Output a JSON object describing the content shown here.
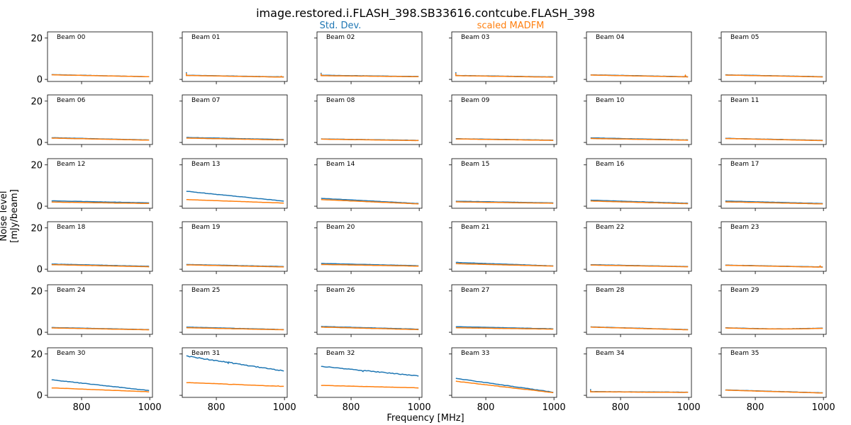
{
  "title": "image.restored.i.FLASH_398.SB33616.contcube.FLASH_398",
  "legend": [
    {
      "label": "Std. Dev.",
      "color": "#1f77b4"
    },
    {
      "label": "scaled MADFM",
      "color": "#ff7f0e"
    }
  ],
  "xlabel": "Frequency [MHz]",
  "ylabel": "Noise level [mJy/beam]",
  "chart_data": {
    "type": "line",
    "layout": "6x6 small multiples, shared axes",
    "xlim": [
      700,
      1008
    ],
    "ylim": [
      -1,
      23
    ],
    "xticks": [
      800,
      1000
    ],
    "yticks": [
      0,
      20
    ],
    "grid": false,
    "panels": [
      {
        "label": "Beam 00",
        "std": [
          2.3,
          1.3
        ],
        "madfm": [
          2.2,
          1.3
        ]
      },
      {
        "label": "Beam 01",
        "std": [
          2.0,
          1.2
        ],
        "madfm": [
          1.9,
          1.1
        ],
        "spikes": {
          "std": [
            [
              712,
              3.5
            ]
          ],
          "madfm": [
            [
              712,
              3.0
            ],
            [
              990,
              1.5
            ]
          ]
        }
      },
      {
        "label": "Beam 02",
        "std": [
          2.0,
          1.4
        ],
        "madfm": [
          1.8,
          1.3
        ],
        "spikes": {
          "std": [
            [
              712,
              3.2
            ]
          ],
          "madfm": [
            [
              712,
              2.8
            ]
          ]
        }
      },
      {
        "label": "Beam 03",
        "std": [
          1.9,
          1.2
        ],
        "madfm": [
          1.8,
          1.1
        ],
        "spikes": {
          "std": [
            [
              712,
              3.5
            ]
          ],
          "madfm": [
            [
              712,
              3.0
            ]
          ]
        }
      },
      {
        "label": "Beam 04",
        "std": [
          2.2,
          1.3
        ],
        "madfm": [
          2.1,
          1.2
        ],
        "spikes": {
          "madfm": [
            [
              990,
              2.0
            ]
          ]
        }
      },
      {
        "label": "Beam 05",
        "std": [
          2.2,
          1.3
        ],
        "madfm": [
          2.1,
          1.2
        ]
      },
      {
        "label": "Beam 06",
        "std": [
          2.3,
          1.2
        ],
        "madfm": [
          2.1,
          1.1
        ]
      },
      {
        "label": "Beam 07",
        "std": [
          2.4,
          1.4
        ],
        "madfm": [
          2.1,
          1.2
        ]
      },
      {
        "label": "Beam 08",
        "std": [
          1.7,
          1.0
        ],
        "madfm": [
          1.6,
          0.9
        ]
      },
      {
        "label": "Beam 09",
        "std": [
          1.8,
          1.1
        ],
        "madfm": [
          1.7,
          1.0
        ]
      },
      {
        "label": "Beam 10",
        "std": [
          2.2,
          1.2
        ],
        "madfm": [
          1.9,
          1.1
        ]
      },
      {
        "label": "Beam 11",
        "std": [
          2.0,
          1.0
        ],
        "madfm": [
          1.9,
          0.9
        ]
      },
      {
        "label": "Beam 12",
        "std": [
          2.6,
          1.6
        ],
        "madfm": [
          2.0,
          1.3
        ]
      },
      {
        "label": "Beam 13",
        "std": [
          7.2,
          2.5
        ],
        "madfm": [
          3.2,
          1.5
        ]
      },
      {
        "label": "Beam 14",
        "std": [
          3.8,
          1.3
        ],
        "madfm": [
          3.2,
          1.1
        ]
      },
      {
        "label": "Beam 15",
        "std": [
          2.4,
          1.6
        ],
        "madfm": [
          2.1,
          1.4
        ]
      },
      {
        "label": "Beam 16",
        "std": [
          2.9,
          1.4
        ],
        "madfm": [
          2.5,
          1.2
        ]
      },
      {
        "label": "Beam 17",
        "std": [
          2.5,
          1.3
        ],
        "madfm": [
          2.1,
          1.1
        ]
      },
      {
        "label": "Beam 18",
        "std": [
          2.5,
          1.4
        ],
        "madfm": [
          2.2,
          1.2
        ]
      },
      {
        "label": "Beam 19",
        "std": [
          2.3,
          1.3
        ],
        "madfm": [
          2.1,
          1.1
        ]
      },
      {
        "label": "Beam 20",
        "std": [
          2.8,
          1.7
        ],
        "madfm": [
          2.3,
          1.5
        ]
      },
      {
        "label": "Beam 21",
        "std": [
          3.3,
          1.6
        ],
        "madfm": [
          2.7,
          1.5
        ]
      },
      {
        "label": "Beam 22",
        "std": [
          2.2,
          1.3
        ],
        "madfm": [
          2.0,
          1.2
        ]
      },
      {
        "label": "Beam 23",
        "std": [
          2.0,
          1.1
        ],
        "madfm": [
          1.9,
          1.0
        ],
        "spikes": {
          "madfm": [
            [
              990,
              1.6
            ]
          ]
        }
      },
      {
        "label": "Beam 24",
        "std": [
          2.3,
          1.3
        ],
        "madfm": [
          2.1,
          1.2
        ]
      },
      {
        "label": "Beam 25",
        "std": [
          2.5,
          1.3
        ],
        "madfm": [
          2.2,
          1.2
        ]
      },
      {
        "label": "Beam 26",
        "std": [
          2.8,
          1.5
        ],
        "madfm": [
          2.5,
          1.3
        ]
      },
      {
        "label": "Beam 27",
        "std": [
          2.7,
          1.7
        ],
        "madfm": [
          2.2,
          1.5
        ]
      },
      {
        "label": "Beam 28",
        "std": [
          2.6,
          1.3
        ],
        "madfm": [
          2.5,
          1.2
        ]
      },
      {
        "label": "Beam 29",
        "std": [
          2.2,
          2.0
        ],
        "madfm": [
          2.1,
          1.9
        ],
        "dip": true
      },
      {
        "label": "Beam 30",
        "std": [
          7.5,
          2.3
        ],
        "madfm": [
          3.6,
          1.7
        ]
      },
      {
        "label": "Beam 31",
        "std": [
          19.0,
          11.8
        ],
        "madfm": [
          6.2,
          4.3
        ],
        "spikes": {
          "std": [
            [
              835,
              15.5
            ]
          ],
          "madfm": [
            [
              982,
              4.6
            ]
          ]
        }
      },
      {
        "label": "Beam 32",
        "std": [
          14.0,
          9.4
        ],
        "madfm": [
          4.8,
          3.6
        ],
        "spikes": {
          "std": [
            [
              835,
              11.5
            ]
          ]
        }
      },
      {
        "label": "Beam 33",
        "std": [
          8.2,
          1.5
        ],
        "madfm": [
          6.8,
          1.3
        ]
      },
      {
        "label": "Beam 34",
        "std": [
          1.8,
          1.5
        ],
        "madfm": [
          1.7,
          1.4
        ],
        "spikes": {
          "std": [
            [
              712,
              3.0
            ]
          ],
          "madfm": [
            [
              712,
              2.5
            ]
          ]
        }
      },
      {
        "label": "Beam 35",
        "std": [
          2.6,
          1.2
        ],
        "madfm": [
          2.5,
          1.1
        ]
      }
    ]
  }
}
